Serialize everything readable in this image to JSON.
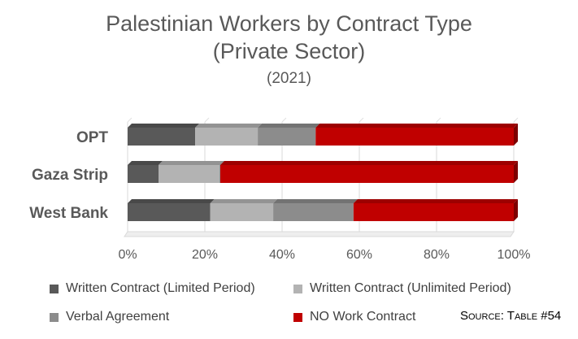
{
  "chart_data": {
    "type": "bar",
    "orientation": "horizontal",
    "stacked": "percent",
    "title": "Palestinian Workers by Contract Type",
    "subtitle": "(Private Sector)",
    "year": "(2021)",
    "categories": [
      "OPT",
      "Gaza Strip",
      "West Bank"
    ],
    "series": [
      {
        "name": "Written Contract (Limited Period)",
        "color": "#595959",
        "values": [
          17.5,
          8.0,
          21.4
        ]
      },
      {
        "name": "Written Contract (Unlimited Period)",
        "color": "#b3b3b3",
        "values": [
          16.2,
          15.8,
          16.3
        ]
      },
      {
        "name": "Verbal Agreement",
        "color": "#8c8c8c",
        "values": [
          15.0,
          0.2,
          20.8
        ]
      },
      {
        "name": "NO Work Contract",
        "color": "#c00000",
        "values": [
          51.3,
          76.0,
          41.5
        ]
      }
    ],
    "xaxis": {
      "ticks": [
        "0%",
        "20%",
        "40%",
        "60%",
        "80%",
        "100%"
      ],
      "range": [
        0,
        100
      ]
    },
    "grid": true,
    "legend_position": "bottom",
    "source": "Source: Table #54"
  }
}
